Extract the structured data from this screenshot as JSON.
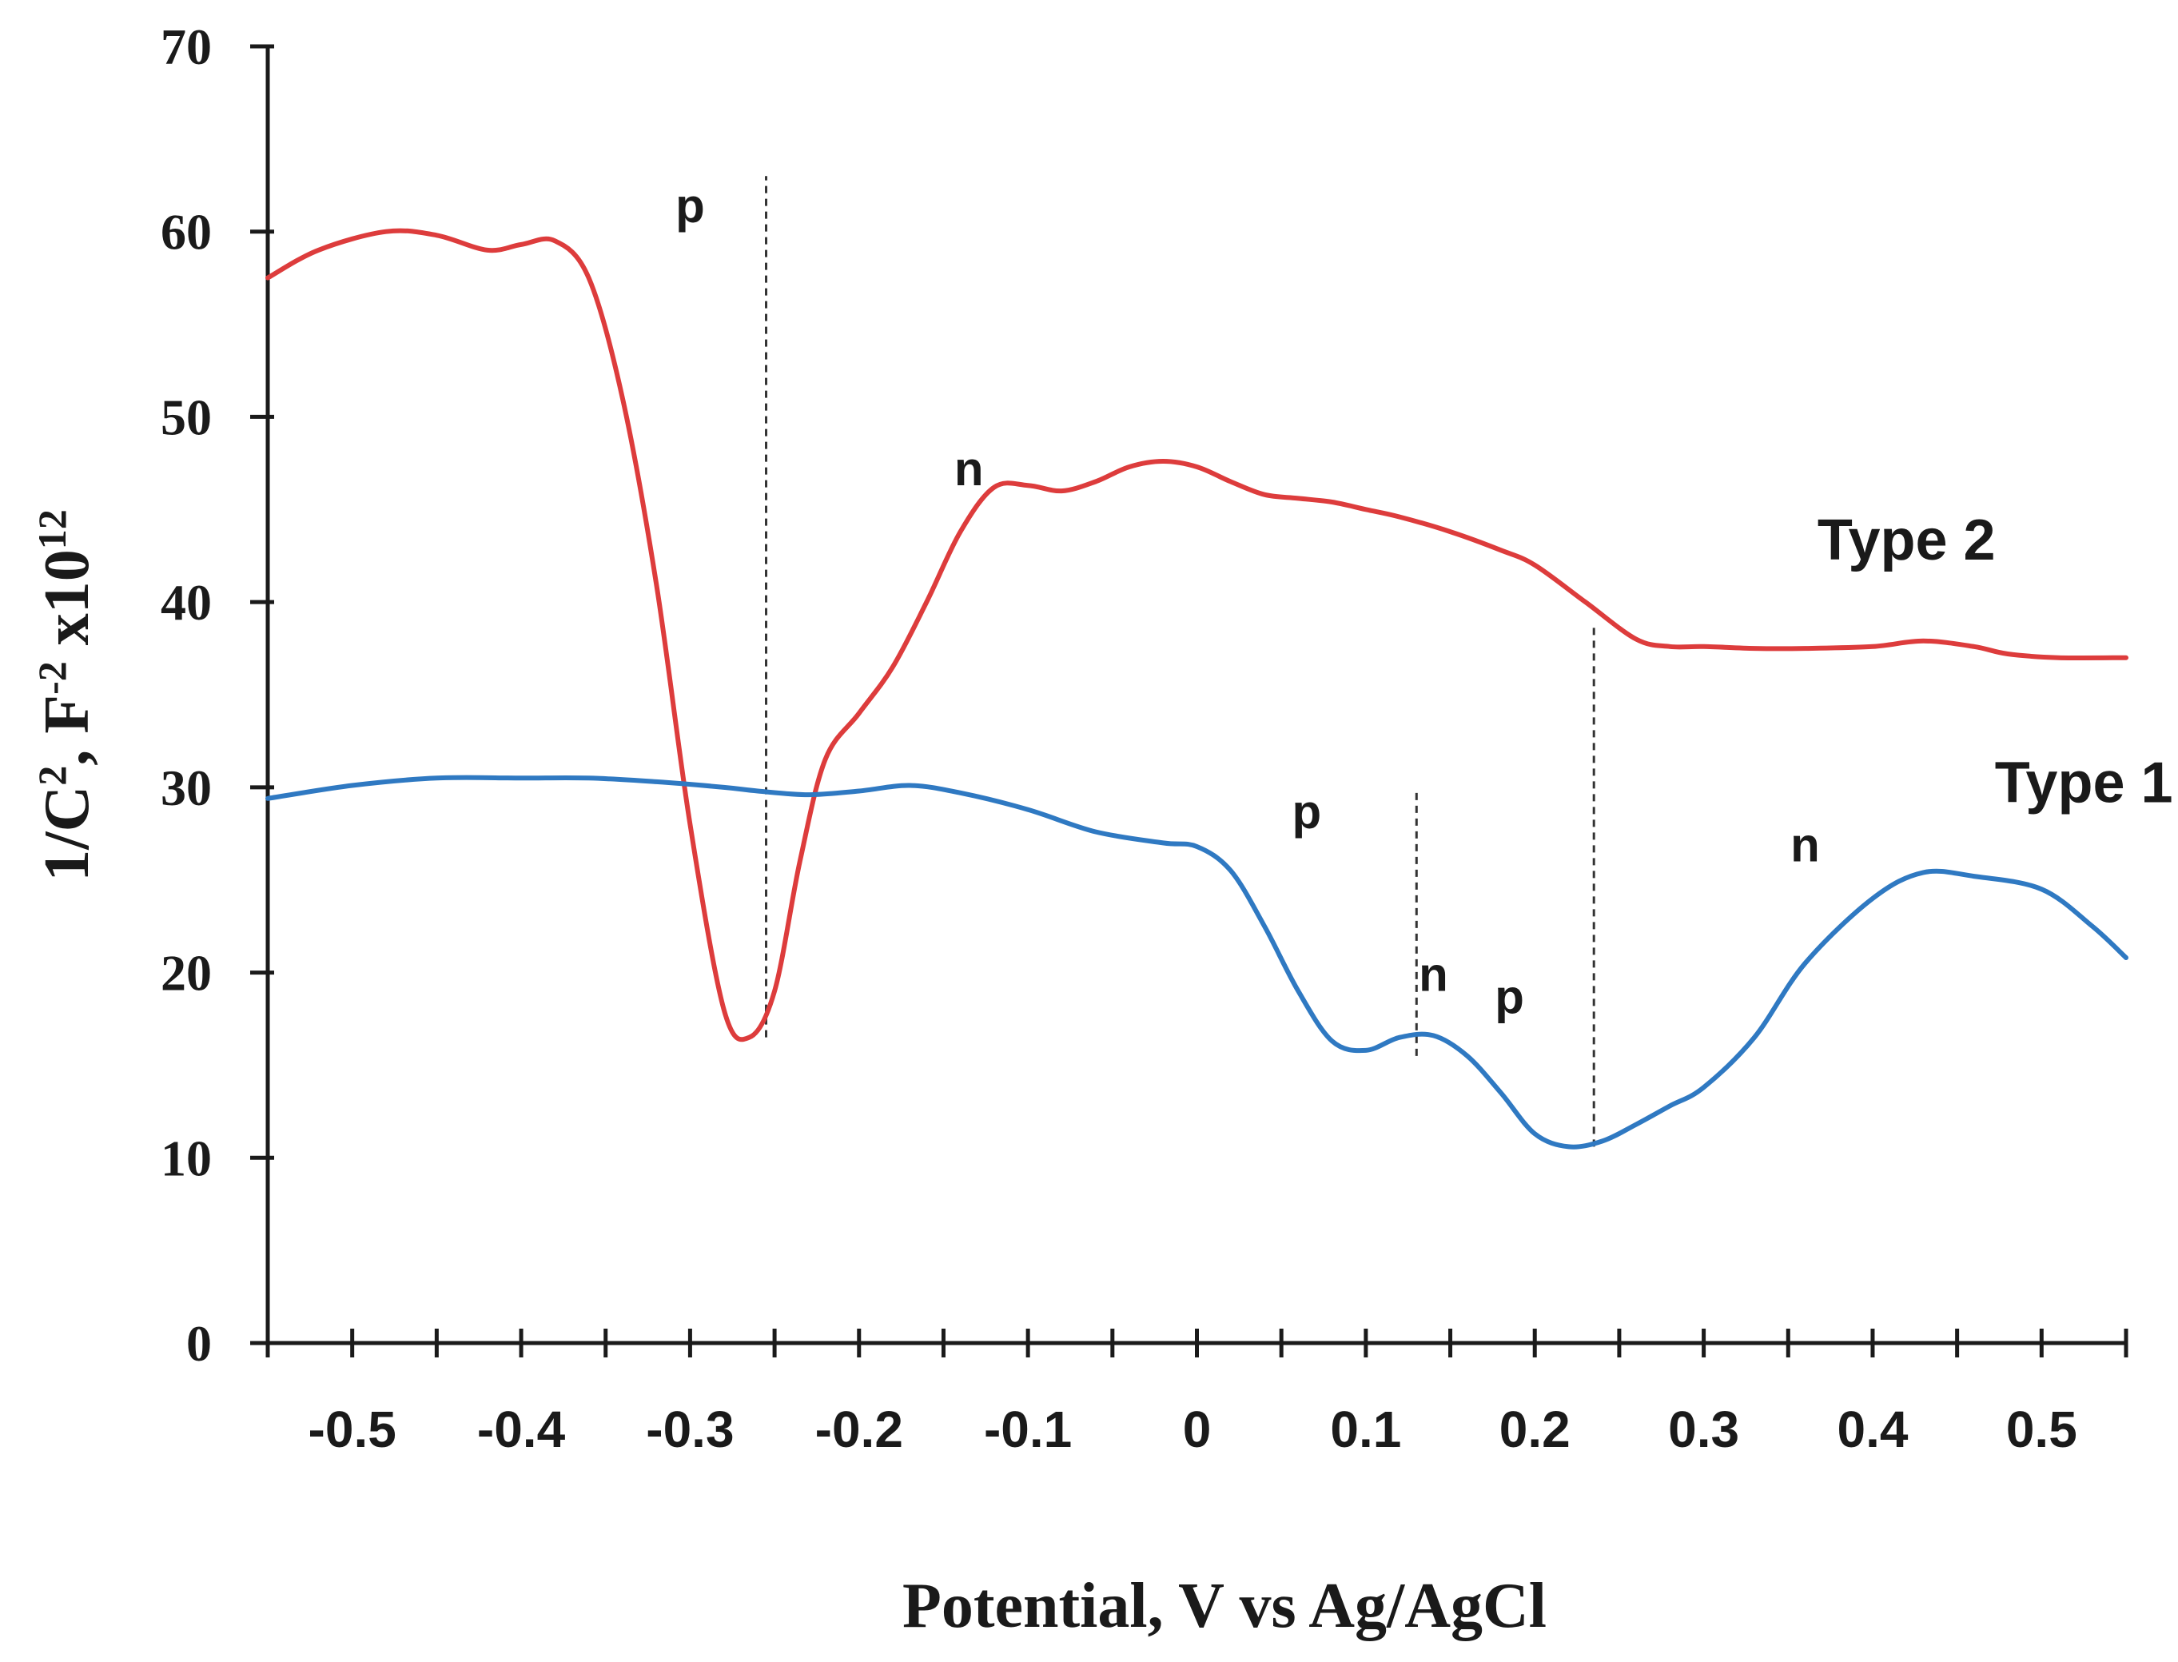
{
  "chart_data": {
    "type": "line",
    "title": "",
    "xlabel": "Potential, V vs Ag/AgCl",
    "ylabel": {
      "base": "1/C",
      "sup1": "2",
      "mid": ", F",
      "sup2": "-2",
      "mid2": " x10",
      "sup3": "12"
    },
    "xlim": [
      -0.55,
      0.55
    ],
    "ylim": [
      0,
      70
    ],
    "xticks": [
      -0.5,
      -0.4,
      -0.3,
      -0.2,
      -0.1,
      0,
      0.1,
      0.2,
      0.3,
      0.4,
      0.5
    ],
    "xtick_labels": [
      "-0.5",
      "-0.4",
      "-0.3",
      "-0.2",
      "-0.1",
      "0",
      "0.1",
      "0.2",
      "0.3",
      "0.4",
      "0.5"
    ],
    "yticks": [
      0,
      10,
      20,
      30,
      40,
      50,
      60,
      70
    ],
    "ytick_labels": [
      "0",
      "10",
      "20",
      "30",
      "40",
      "50",
      "60",
      "70"
    ],
    "series": [
      {
        "name": "Type 2",
        "color": "#dd3c3c",
        "x": [
          -0.55,
          -0.52,
          -0.48,
          -0.45,
          -0.42,
          -0.4,
          -0.38,
          -0.36,
          -0.34,
          -0.32,
          -0.3,
          -0.28,
          -0.265,
          -0.25,
          -0.235,
          -0.22,
          -0.2,
          -0.18,
          -0.16,
          -0.14,
          -0.12,
          -0.1,
          -0.08,
          -0.06,
          -0.04,
          -0.02,
          0,
          0.02,
          0.04,
          0.06,
          0.08,
          0.1,
          0.12,
          0.15,
          0.18,
          0.2,
          0.23,
          0.26,
          0.28,
          0.3,
          0.33,
          0.36,
          0.4,
          0.43,
          0.46,
          0.48,
          0.51,
          0.55
        ],
        "y": [
          57.5,
          59.0,
          60.0,
          59.8,
          59.0,
          59.3,
          59.5,
          57.5,
          51.0,
          41.0,
          28.0,
          18.0,
          16.5,
          19.0,
          26.0,
          31.5,
          34.0,
          36.5,
          40.0,
          43.8,
          46.2,
          46.3,
          46.0,
          46.5,
          47.3,
          47.6,
          47.3,
          46.5,
          45.8,
          45.6,
          45.4,
          45.0,
          44.6,
          43.8,
          42.8,
          42.0,
          40.0,
          38.0,
          37.6,
          37.6,
          37.5,
          37.5,
          37.6,
          37.9,
          37.6,
          37.2,
          37.0,
          37.0
        ]
      },
      {
        "name": "Type 1",
        "color": "#2f79c2",
        "x": [
          -0.55,
          -0.5,
          -0.45,
          -0.4,
          -0.36,
          -0.32,
          -0.28,
          -0.26,
          -0.23,
          -0.2,
          -0.17,
          -0.14,
          -0.1,
          -0.06,
          -0.02,
          0.0,
          0.02,
          0.04,
          0.06,
          0.08,
          0.1,
          0.12,
          0.14,
          0.16,
          0.18,
          0.2,
          0.22,
          0.24,
          0.26,
          0.28,
          0.3,
          0.33,
          0.36,
          0.4,
          0.43,
          0.46,
          0.5,
          0.53,
          0.55
        ],
        "y": [
          29.4,
          30.1,
          30.5,
          30.5,
          30.5,
          30.3,
          30.0,
          29.8,
          29.6,
          29.8,
          30.1,
          29.7,
          28.8,
          27.6,
          27.0,
          26.8,
          25.5,
          22.5,
          19.0,
          16.3,
          15.8,
          16.5,
          16.6,
          15.5,
          13.5,
          11.3,
          10.6,
          10.9,
          11.8,
          12.8,
          13.8,
          16.5,
          20.5,
          24.0,
          25.4,
          25.2,
          24.5,
          22.5,
          20.8
        ]
      }
    ],
    "legend": [
      {
        "label": "Type 2",
        "x": 0.42,
        "y": 42.3
      },
      {
        "label": "Type 1",
        "x": 0.525,
        "y": 29.2
      }
    ],
    "annotations": [
      {
        "text": "p",
        "x": -0.3,
        "y": 60.5
      },
      {
        "text": "n",
        "x": -0.135,
        "y": 46.3
      },
      {
        "text": "p",
        "x": 0.065,
        "y": 27.8
      },
      {
        "text": "n",
        "x": 0.14,
        "y": 19.0
      },
      {
        "text": "p",
        "x": 0.185,
        "y": 17.8
      },
      {
        "text": "n",
        "x": 0.36,
        "y": 26.0
      }
    ],
    "vlines": [
      {
        "x": -0.255,
        "y0": 16.5,
        "y1": 63.0
      },
      {
        "x": 0.13,
        "y0": 15.5,
        "y1": 29.8
      },
      {
        "x": 0.235,
        "y0": 10.6,
        "y1": 38.8
      }
    ]
  }
}
